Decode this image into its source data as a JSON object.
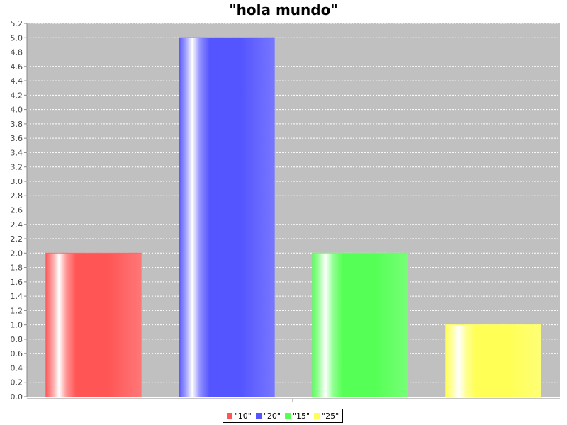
{
  "chart_data": {
    "type": "bar",
    "title": "\"hola mundo\"",
    "categories": [],
    "series": [
      {
        "name": "\"10\"",
        "value": 2.0,
        "color": "#ff5555"
      },
      {
        "name": "\"20\"",
        "value": 5.0,
        "color": "#5555ff"
      },
      {
        "name": "\"15\"",
        "value": 2.0,
        "color": "#55ff55"
      },
      {
        "name": "\"25\"",
        "value": 1.0,
        "color": "#ffff55"
      }
    ],
    "ylim": [
      0,
      5.2
    ],
    "ytick_step": 0.2,
    "grid": true,
    "plot_background": "#c0c0c0",
    "legend_position": "bottom"
  }
}
